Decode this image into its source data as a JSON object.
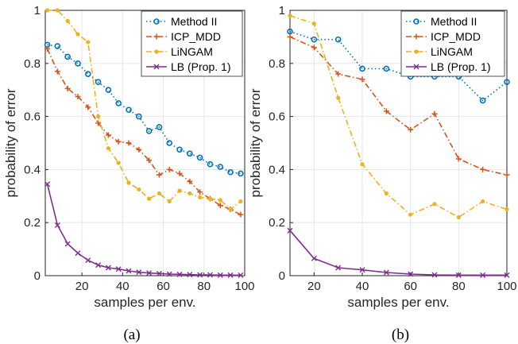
{
  "colors": {
    "method2": "#0072BD",
    "icp_mdd": "#D95319",
    "lingam": "#EDB120",
    "lb": "#7E2F8E"
  },
  "chart_data": [
    {
      "type": "line",
      "caption": "(a)",
      "xlabel": "samples per env.",
      "ylabel": "probability of error",
      "xlim": [
        2,
        100
      ],
      "ylim": [
        0,
        1
      ],
      "xticks": [
        20,
        40,
        60,
        80,
        100
      ],
      "yticks": [
        0,
        0.2,
        0.4,
        0.6,
        0.8,
        1
      ],
      "legend_position": "top-right",
      "series": [
        {
          "name": "Method II",
          "style": "dotted",
          "marker": "circle",
          "color_key": "method2",
          "x": [
            3,
            8,
            13,
            18,
            23,
            28,
            33,
            38,
            43,
            48,
            53,
            58,
            63,
            68,
            73,
            78,
            83,
            88,
            93,
            98
          ],
          "y": [
            0.87,
            0.865,
            0.825,
            0.8,
            0.76,
            0.73,
            0.7,
            0.65,
            0.625,
            0.6,
            0.545,
            0.56,
            0.5,
            0.475,
            0.46,
            0.445,
            0.42,
            0.41,
            0.39,
            0.385
          ]
        },
        {
          "name": "ICP_MDD",
          "style": "dashdot",
          "marker": "plus",
          "color_key": "icp_mdd",
          "x": [
            3,
            8,
            13,
            18,
            23,
            28,
            33,
            38,
            43,
            48,
            53,
            58,
            63,
            68,
            73,
            78,
            83,
            88,
            93,
            98
          ],
          "y": [
            0.855,
            0.77,
            0.705,
            0.675,
            0.635,
            0.575,
            0.53,
            0.505,
            0.5,
            0.475,
            0.435,
            0.38,
            0.4,
            0.385,
            0.355,
            0.315,
            0.29,
            0.265,
            0.25,
            0.23
          ]
        },
        {
          "name": "LiNGAM",
          "style": "dashdot",
          "marker": "dot",
          "color_key": "lingam",
          "x": [
            3,
            8,
            13,
            18,
            23,
            28,
            33,
            38,
            43,
            48,
            53,
            58,
            63,
            68,
            73,
            78,
            83,
            88,
            93,
            98
          ],
          "y": [
            1.0,
            1.0,
            0.96,
            0.91,
            0.88,
            0.6,
            0.48,
            0.425,
            0.35,
            0.325,
            0.29,
            0.31,
            0.28,
            0.32,
            0.31,
            0.295,
            0.29,
            0.285,
            0.25,
            0.28
          ]
        },
        {
          "name": "LB (Prop. 1)",
          "style": "solid",
          "marker": "cross",
          "color_key": "lb",
          "x": [
            3,
            8,
            13,
            18,
            23,
            28,
            33,
            38,
            43,
            48,
            53,
            58,
            63,
            68,
            73,
            78,
            83,
            88,
            93,
            98
          ],
          "y": [
            0.345,
            0.19,
            0.12,
            0.085,
            0.058,
            0.04,
            0.03,
            0.025,
            0.018,
            0.013,
            0.01,
            0.008,
            0.006,
            0.005,
            0.004,
            0.003,
            0.003,
            0.002,
            0.002,
            0.002
          ]
        }
      ]
    },
    {
      "type": "line",
      "caption": "(b)",
      "xlabel": "samples per env.",
      "ylabel": "probability of error",
      "xlim": [
        10,
        100
      ],
      "ylim": [
        0,
        1
      ],
      "xticks": [
        20,
        40,
        60,
        80,
        100
      ],
      "yticks": [
        0,
        0.2,
        0.4,
        0.6,
        0.8,
        1
      ],
      "legend_position": "top-right",
      "series": [
        {
          "name": "Method II",
          "style": "dotted",
          "marker": "circle",
          "color_key": "method2",
          "x": [
            10,
            20,
            30,
            40,
            50,
            60,
            70,
            80,
            90,
            100
          ],
          "y": [
            0.92,
            0.89,
            0.89,
            0.78,
            0.78,
            0.75,
            0.75,
            0.75,
            0.66,
            0.73
          ]
        },
        {
          "name": "ICP_MDD",
          "style": "dashdot",
          "marker": "plus",
          "color_key": "icp_mdd",
          "x": [
            10,
            20,
            30,
            40,
            50,
            60,
            70,
            80,
            90,
            100
          ],
          "y": [
            0.9,
            0.86,
            0.76,
            0.74,
            0.62,
            0.55,
            0.61,
            0.44,
            0.4,
            0.38
          ]
        },
        {
          "name": "LiNGAM",
          "style": "dashdot",
          "marker": "dot",
          "color_key": "lingam",
          "x": [
            10,
            20,
            30,
            40,
            50,
            60,
            70,
            80,
            90,
            100
          ],
          "y": [
            0.98,
            0.95,
            0.67,
            0.42,
            0.31,
            0.23,
            0.27,
            0.22,
            0.28,
            0.25
          ]
        },
        {
          "name": "LB (Prop. 1)",
          "style": "solid",
          "marker": "cross",
          "color_key": "lb",
          "x": [
            10,
            20,
            30,
            40,
            50,
            60,
            70,
            80,
            90,
            100
          ],
          "y": [
            0.17,
            0.065,
            0.03,
            0.022,
            0.012,
            0.006,
            0.003,
            0.002,
            0.002,
            0.002
          ]
        }
      ]
    }
  ]
}
